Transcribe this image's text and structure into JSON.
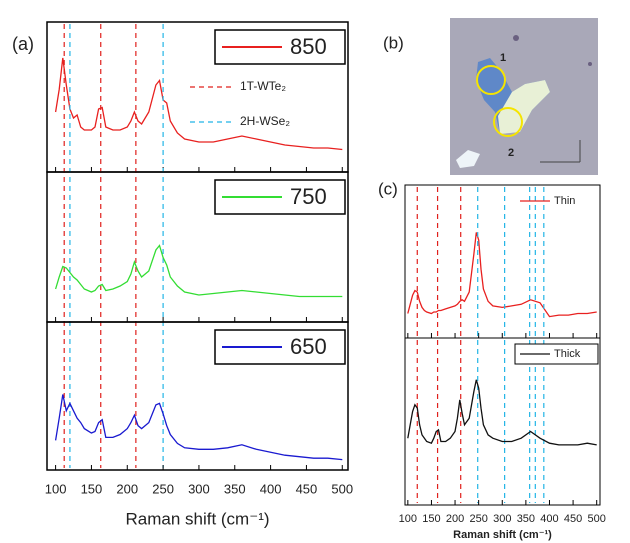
{
  "image": {
    "label": "(b)",
    "markers": [
      "1",
      "2"
    ]
  },
  "chart_data": [
    {
      "type": "line",
      "panel_label": "(a)",
      "xlim": [
        88,
        508
      ],
      "ylim": [
        0,
        100
      ],
      "x": [
        100,
        105,
        110,
        115,
        120,
        125,
        130,
        135,
        140,
        150,
        155,
        160,
        165,
        170,
        180,
        190,
        200,
        205,
        210,
        215,
        220,
        230,
        240,
        245,
        250,
        255,
        260,
        270,
        280,
        300,
        320,
        340,
        360,
        380,
        400,
        420,
        440,
        460,
        480,
        500
      ],
      "series": [
        {
          "name": "850",
          "color": "#e8201f",
          "values": [
            40,
            55,
            76,
            58,
            42,
            36,
            38,
            30,
            28,
            28,
            30,
            42,
            43,
            30,
            28,
            28,
            30,
            34,
            40,
            34,
            32,
            40,
            58,
            61,
            48,
            46,
            34,
            26,
            22,
            20,
            20,
            22,
            24,
            22,
            20,
            18,
            17,
            16,
            16,
            15
          ]
        }
      ],
      "ref_lines": [
        {
          "name": "1T-WTe₂",
          "color": "#e0201c",
          "values": [
            112,
            163,
            212
          ]
        },
        {
          "name": "2H-WSe₂",
          "color": "#22b5e6",
          "values": [
            120,
            250
          ]
        }
      ]
    },
    {
      "type": "line",
      "xlim": [
        88,
        508
      ],
      "ylim": [
        0,
        100
      ],
      "x": [
        100,
        105,
        110,
        115,
        120,
        125,
        130,
        135,
        140,
        150,
        155,
        160,
        165,
        170,
        180,
        190,
        200,
        205,
        210,
        215,
        220,
        230,
        240,
        245,
        250,
        255,
        260,
        270,
        280,
        300,
        320,
        340,
        360,
        380,
        400,
        420,
        440,
        460,
        480,
        500
      ],
      "series": [
        {
          "name": "750",
          "color": "#33dd33",
          "values": [
            22,
            30,
            37,
            36,
            33,
            30,
            28,
            25,
            22,
            20,
            21,
            24,
            25,
            21,
            22,
            24,
            27,
            32,
            40,
            34,
            30,
            34,
            48,
            51,
            43,
            38,
            30,
            24,
            20,
            18,
            19,
            20,
            21,
            20,
            19,
            18,
            17,
            17,
            17,
            17
          ]
        }
      ]
    },
    {
      "type": "line",
      "xlim": [
        88,
        508
      ],
      "ylim": [
        0,
        100
      ],
      "xlabel": "Raman shift (cm⁻¹)",
      "xticks": [
        100,
        150,
        200,
        250,
        300,
        350,
        400,
        450,
        500
      ],
      "x": [
        100,
        105,
        110,
        115,
        120,
        125,
        130,
        135,
        140,
        150,
        155,
        160,
        165,
        170,
        180,
        190,
        200,
        205,
        210,
        215,
        220,
        230,
        240,
        245,
        250,
        255,
        260,
        270,
        280,
        300,
        320,
        340,
        360,
        380,
        400,
        420,
        440,
        460,
        480,
        500
      ],
      "series": [
        {
          "name": "650",
          "color": "#1a1ad0",
          "values": [
            20,
            35,
            51,
            40,
            45,
            40,
            35,
            32,
            28,
            25,
            26,
            32,
            34,
            22,
            22,
            24,
            28,
            32,
            37,
            30,
            28,
            32,
            44,
            45,
            38,
            30,
            24,
            18,
            15,
            14,
            14,
            15,
            17,
            14,
            12,
            10,
            9,
            8,
            8,
            7
          ]
        }
      ]
    },
    {
      "type": "line",
      "panel_label": "(c)",
      "xlim": [
        94,
        507
      ],
      "ylim": [
        0,
        100
      ],
      "x": [
        100,
        105,
        110,
        115,
        120,
        125,
        130,
        135,
        140,
        150,
        155,
        160,
        165,
        170,
        180,
        190,
        200,
        205,
        210,
        215,
        220,
        230,
        240,
        245,
        250,
        255,
        260,
        270,
        280,
        300,
        320,
        340,
        360,
        380,
        400,
        420,
        440,
        460,
        480,
        500
      ],
      "series": [
        {
          "name": "Thin",
          "color": "#e8201f",
          "values": [
            16,
            22,
            28,
            31,
            30,
            24,
            20,
            18,
            17,
            16,
            17,
            17,
            18,
            18,
            19,
            20,
            21,
            22,
            24,
            25,
            24,
            30,
            55,
            69,
            64,
            45,
            32,
            24,
            21,
            20,
            21,
            22,
            25,
            23,
            14,
            15,
            15,
            16,
            16,
            17
          ]
        }
      ],
      "ref_lines": [
        {
          "color": "#e0201c",
          "values": [
            120,
            163,
            212
          ]
        },
        {
          "color": "#22b5e6",
          "values": [
            248,
            305,
            358,
            370,
            388
          ]
        }
      ]
    },
    {
      "type": "line",
      "xlim": [
        94,
        507
      ],
      "ylim": [
        0,
        100
      ],
      "xlabel": "Raman shift (cm⁻¹)",
      "xticks": [
        100,
        150,
        200,
        250,
        300,
        350,
        400,
        450,
        500
      ],
      "x": [
        100,
        105,
        110,
        115,
        120,
        125,
        130,
        135,
        140,
        150,
        155,
        160,
        165,
        170,
        180,
        190,
        200,
        205,
        210,
        215,
        220,
        230,
        240,
        245,
        250,
        255,
        260,
        270,
        280,
        300,
        320,
        340,
        360,
        380,
        400,
        420,
        440,
        460,
        480,
        500
      ],
      "series": [
        {
          "name": "Thick",
          "color": "#111111",
          "values": [
            40,
            48,
            56,
            60,
            58,
            48,
            42,
            40,
            38,
            37,
            40,
            44,
            45,
            38,
            38,
            40,
            44,
            52,
            63,
            55,
            48,
            52,
            68,
            75,
            70,
            58,
            48,
            42,
            40,
            38,
            38,
            40,
            44,
            40,
            37,
            36,
            36,
            36,
            37,
            36
          ]
        }
      ]
    }
  ]
}
